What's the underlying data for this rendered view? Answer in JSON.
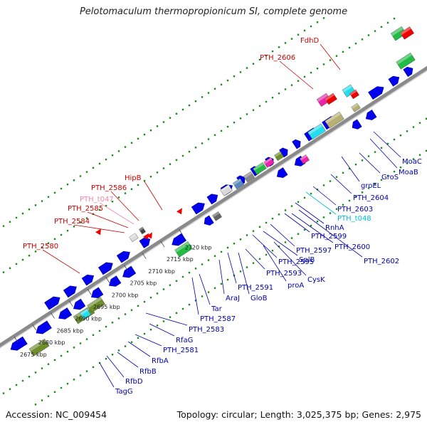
{
  "title": "Pelotomaculum thermopropionicum SI, complete genome",
  "footer": {
    "accession": "Accession: NC_009454",
    "summary": "Topology: circular; Length: 3,025,375 bp; Genes: 2,975"
  },
  "colors": {
    "backbone": "#8a8a8a",
    "cds": "#0000ee",
    "dots": "#1a8a1a",
    "rna_label": "#cc0000",
    "pink_label": "#ee88aa",
    "cyan_label": "#00bbdd",
    "label": "#0000aa"
  },
  "ticks": [
    {
      "label": "2675 kbp",
      "kbp": 2675
    },
    {
      "label": "2680 kbp",
      "kbp": 2680
    },
    {
      "label": "2685 kbp",
      "kbp": 2685
    },
    {
      "label": "2690 kbp",
      "kbp": 2690
    },
    {
      "label": "2695 kbp",
      "kbp": 2695
    },
    {
      "label": "2700 kbp",
      "kbp": 2700
    },
    {
      "label": "2705 kbp",
      "kbp": 2705
    },
    {
      "label": "2710 kbp",
      "kbp": 2710
    },
    {
      "label": "2715 kbp",
      "kbp": 2715
    },
    {
      "label": "2720 kbp",
      "kbp": 2720
    }
  ],
  "labels_top": [
    "PTH_2580",
    "PTH_2584",
    "PTH_2585",
    "PTH_t047",
    "PTH_2586",
    "HipB",
    "PTH_2606",
    "FdhD"
  ],
  "labels_bottom": [
    "TagG",
    "RfbD",
    "RfbB",
    "RfbA",
    "PTH_2581",
    "RfaG",
    "PTH_2583",
    "PTH_2587",
    "Tar",
    "AraJ",
    "PTH_2591",
    "GloB",
    "PTH_2593",
    "proA",
    "CysK",
    "PTH_2595",
    "SplB",
    "PTH_2597",
    "PTH_2600",
    "PTH_2602",
    "PTH_2599",
    "RnhA",
    "PTH_t048",
    "PTH_2603",
    "PTH_2604",
    "groEL",
    "GroS",
    "MoaB",
    "MoaC"
  ]
}
